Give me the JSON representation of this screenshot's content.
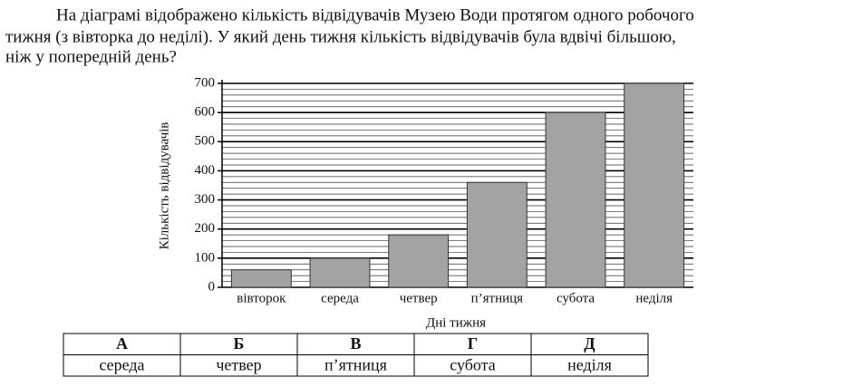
{
  "question_lines": [
    "На діаграмі відображено кількість відвідувачів Музею Води протягом одного робочого",
    "тижня (з вівторка до неділі). У який день тижня кількість відвідувачів була вдвічі більшою,",
    "ніж у попередній день?"
  ],
  "chart_data": {
    "type": "bar",
    "x_label": "Дні тижня",
    "y_label": "Кількість відвідувачів",
    "categories": [
      "вівторок",
      "середа",
      "четвер",
      "п’ятниця",
      "субота",
      "неділя"
    ],
    "values": [
      60,
      100,
      180,
      360,
      600,
      700
    ],
    "color": "#a3a3a3",
    "ylim": [
      0,
      700
    ],
    "yticks": [
      0,
      100,
      200,
      300,
      400,
      500,
      600,
      700
    ],
    "minor_yticks": [
      20,
      40,
      60,
      80,
      120,
      140,
      160,
      180,
      220,
      240,
      260,
      280,
      320,
      340,
      360,
      380,
      420,
      440,
      460,
      480,
      520,
      540,
      560,
      580,
      620,
      640,
      660,
      680
    ],
    "grid": true
  },
  "table": {
    "header": [
      "А",
      "Б",
      "В",
      "Г",
      "Д"
    ],
    "rows": [
      [
        "середа",
        "четвер",
        "п’ятниця",
        "субота",
        "неділя"
      ]
    ]
  }
}
